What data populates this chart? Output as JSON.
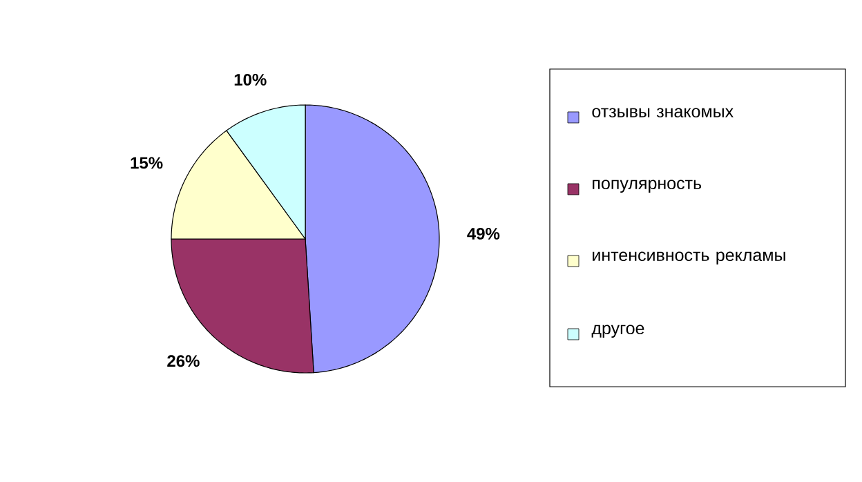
{
  "chart_data": {
    "type": "pie",
    "categories": [
      "отзывы знакомых",
      "популярность",
      "интенсивность рекламы",
      "другое"
    ],
    "values": [
      49,
      26,
      15,
      10
    ],
    "value_labels": [
      "49%",
      "26%",
      "15%",
      "10%"
    ],
    "colors": [
      "#9999ff",
      "#993366",
      "#ffffcc",
      "#ccffff"
    ],
    "legend": "right"
  }
}
